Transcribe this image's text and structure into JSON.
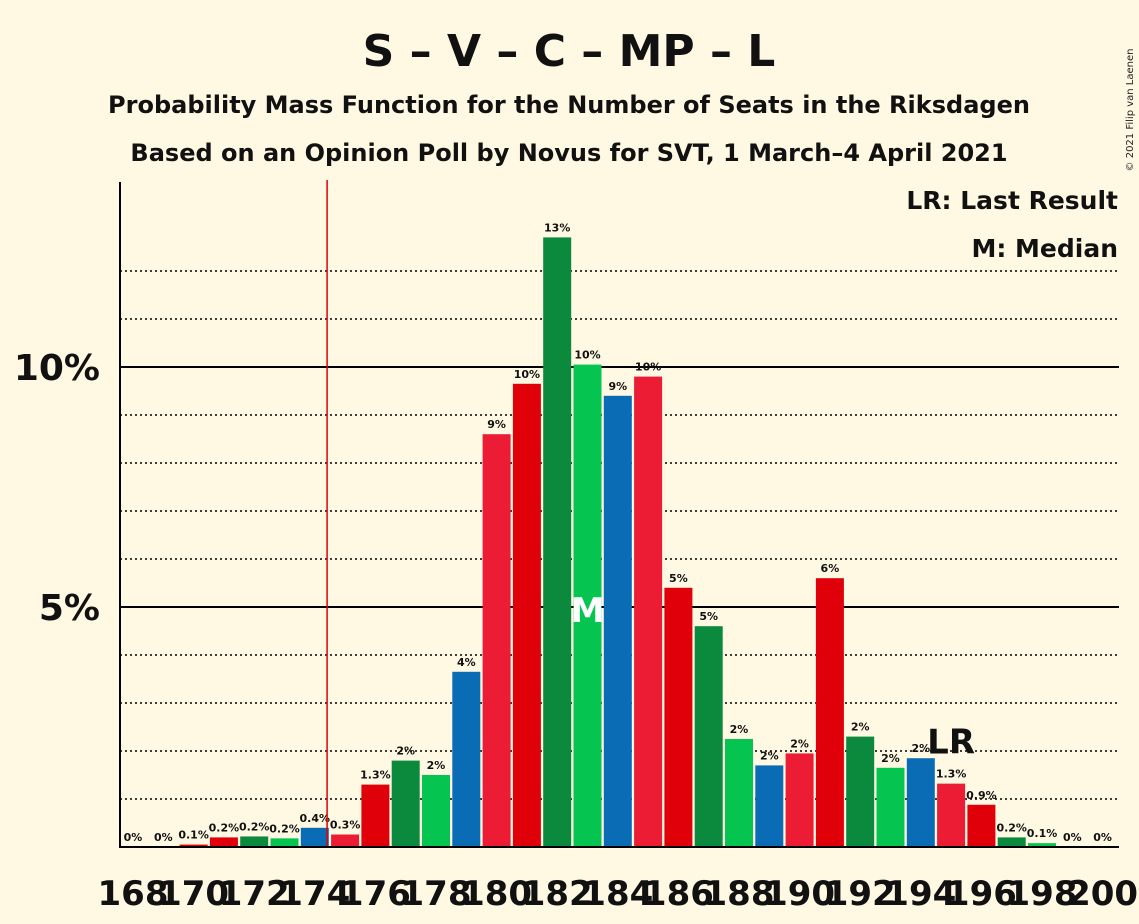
{
  "header": {
    "title": "S – V – C – MP – L",
    "subtitle1": "Probability Mass Function for the Number of Seats in the Riksdagen",
    "subtitle2": "Based on an Opinion Poll by Novus for SVT, 1 March–4 April 2021",
    "copyright": "© 2021 Filip van Laenen"
  },
  "legend": {
    "lr": "LR: Last Result",
    "median": "M: Median"
  },
  "colors": {
    "background": "#FFF8E2",
    "green_dark": "#0B8A3E",
    "green_light": "#05C550",
    "blue": "#0A6CB4",
    "red_pink": "#EC1C35",
    "red": "#E00009",
    "threshold_line": "#E00009"
  },
  "chart_data": {
    "type": "bar",
    "x": [
      168,
      169,
      170,
      171,
      172,
      173,
      174,
      175,
      176,
      177,
      178,
      179,
      180,
      181,
      182,
      183,
      184,
      185,
      186,
      187,
      188,
      189,
      190,
      191,
      192,
      193,
      194,
      195,
      196,
      197,
      198,
      199,
      200
    ],
    "values": [
      0,
      0,
      0.05,
      0.2,
      0.22,
      0.18,
      0.4,
      0.26,
      1.3,
      1.8,
      1.5,
      3.65,
      8.6,
      9.65,
      12.7,
      10.05,
      9.4,
      9.8,
      5.4,
      4.6,
      2.25,
      1.7,
      1.95,
      5.6,
      2.3,
      1.65,
      1.85,
      1.32,
      0.88,
      0.2,
      0.08,
      0,
      0
    ],
    "labels": [
      "0%",
      "0%",
      "0.1%",
      "0.2%",
      "0.2%",
      "0.2%",
      "0.4%",
      "0.3%",
      "1.3%",
      "2%",
      "2%",
      "4%",
      "9%",
      "10%",
      "13%",
      "10%",
      "9%",
      "10%",
      "5%",
      "5%",
      "2%",
      "2%",
      "2%",
      "6%",
      "2%",
      "2%",
      "2%",
      "1.3%",
      "0.9%",
      "0.2%",
      "0.1%",
      "0%",
      "0%"
    ],
    "colors": [
      "#0A6CB4",
      "#EC1C35",
      "#E00009",
      "#E00009",
      "#0B8A3E",
      "#05C550",
      "#0A6CB4",
      "#EC1C35",
      "#E00009",
      "#0B8A3E",
      "#05C550",
      "#0A6CB4",
      "#EC1C35",
      "#E00009",
      "#0B8A3E",
      "#05C550",
      "#0A6CB4",
      "#EC1C35",
      "#E00009",
      "#0B8A3E",
      "#05C550",
      "#0A6CB4",
      "#EC1C35",
      "#E00009",
      "#0B8A3E",
      "#05C550",
      "#0A6CB4",
      "#EC1C35",
      "#E00009",
      "#0B8A3E",
      "#05C550",
      "#0A6CB4",
      "#EC1C35"
    ],
    "x_tick_labels": [
      "168",
      "170",
      "172",
      "174",
      "176",
      "178",
      "180",
      "182",
      "184",
      "186",
      "188",
      "190",
      "192",
      "194",
      "196",
      "198",
      "200"
    ],
    "y_ticks": [
      {
        "value": 5,
        "label": "5%"
      },
      {
        "value": 10,
        "label": "10%"
      }
    ],
    "ylim": [
      0,
      13.8
    ],
    "dotted_gridlines": [
      1,
      2,
      3,
      4,
      6,
      7,
      8,
      9,
      11,
      12
    ],
    "majority_threshold": 175,
    "median_seat": 183,
    "median_marker": "M",
    "last_result_seat": 195,
    "last_result_marker": "LR"
  }
}
